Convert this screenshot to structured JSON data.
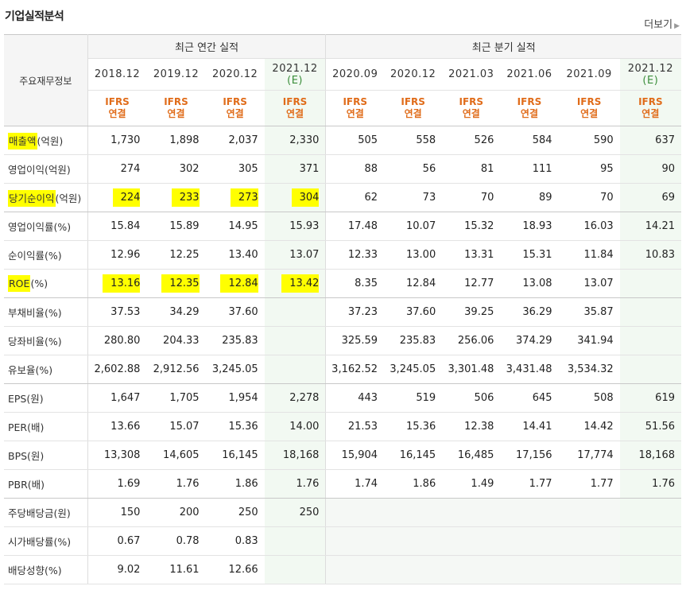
{
  "page_title": "기업실적분석",
  "more_label": "더보기",
  "table": {
    "corner_label": "주요재무정보",
    "group_annual": "최근 연간 실적",
    "group_quarterly": "최근 분기 실적",
    "periods": [
      "2018.12",
      "2019.12",
      "2020.12",
      "2021.12",
      "2020.09",
      "2020.12",
      "2021.03",
      "2021.06",
      "2021.09",
      "2021.12"
    ],
    "estimate_mark": "(E)",
    "ifrs_line1": "IFRS",
    "ifrs_line2": "연결",
    "rows": [
      {
        "label_hl": "매출액",
        "label_rest": "(억원)",
        "values": [
          "1,730",
          "1,898",
          "2,037",
          "2,330",
          "505",
          "558",
          "526",
          "584",
          "590",
          "637"
        ]
      },
      {
        "label": "영업이익(억원)",
        "values": [
          "274",
          "302",
          "305",
          "371",
          "88",
          "56",
          "81",
          "111",
          "95",
          "90"
        ]
      },
      {
        "label_hl": "당기순이익",
        "label_rest": "(억원)",
        "values": [
          "224",
          "233",
          "273",
          "304",
          "62",
          "73",
          "70",
          "89",
          "70",
          "69"
        ]
      },
      {
        "label": "영업이익률(%)",
        "values": [
          "15.84",
          "15.89",
          "14.95",
          "15.93",
          "17.48",
          "10.07",
          "15.32",
          "18.93",
          "16.03",
          "14.21"
        ]
      },
      {
        "label": "순이익률(%)",
        "values": [
          "12.96",
          "12.25",
          "13.40",
          "13.07",
          "12.33",
          "13.00",
          "13.31",
          "15.31",
          "11.84",
          "10.83"
        ]
      },
      {
        "label_hl": "ROE",
        "label_rest": "(%)",
        "values": [
          "13.16",
          "12.35",
          "12.84",
          "13.42",
          "8.35",
          "12.84",
          "12.77",
          "13.08",
          "13.07",
          ""
        ]
      },
      {
        "label": "부채비율(%)",
        "values": [
          "37.53",
          "34.29",
          "37.60",
          "",
          "37.23",
          "37.60",
          "39.25",
          "36.29",
          "35.87",
          ""
        ]
      },
      {
        "label": "당좌비율(%)",
        "values": [
          "280.80",
          "204.33",
          "235.83",
          "",
          "325.59",
          "235.83",
          "256.06",
          "374.29",
          "341.94",
          ""
        ]
      },
      {
        "label": "유보율(%)",
        "values": [
          "2,602.88",
          "2,912.56",
          "3,245.05",
          "",
          "3,162.52",
          "3,245.05",
          "3,301.48",
          "3,431.48",
          "3,534.32",
          ""
        ]
      },
      {
        "label": "EPS(원)",
        "values": [
          "1,647",
          "1,705",
          "1,954",
          "2,278",
          "443",
          "519",
          "506",
          "645",
          "508",
          "619"
        ]
      },
      {
        "label": "PER(배)",
        "values": [
          "13.66",
          "15.07",
          "15.36",
          "14.00",
          "21.53",
          "15.36",
          "12.38",
          "14.41",
          "14.42",
          "51.56"
        ]
      },
      {
        "label": "BPS(원)",
        "values": [
          "13,308",
          "14,605",
          "16,145",
          "18,168",
          "15,904",
          "16,145",
          "16,485",
          "17,156",
          "17,774",
          "18,168"
        ]
      },
      {
        "label": "PBR(배)",
        "values": [
          "1.69",
          "1.76",
          "1.86",
          "1.76",
          "1.74",
          "1.86",
          "1.49",
          "1.77",
          "1.77",
          "1.76"
        ]
      },
      {
        "label": "주당배당금(원)",
        "values": [
          "150",
          "200",
          "250",
          "250",
          "",
          "",
          "",
          "",
          "",
          ""
        ]
      },
      {
        "label": "시가배당률(%)",
        "values": [
          "0.67",
          "0.78",
          "0.83",
          "",
          "",
          "",
          "",
          "",
          "",
          ""
        ]
      },
      {
        "label": "배당성향(%)",
        "values": [
          "9.02",
          "11.61",
          "12.66",
          "",
          "",
          "",
          "",
          "",
          "",
          ""
        ]
      }
    ],
    "highlight_rows": [
      0,
      2,
      5
    ],
    "highlight_value_rows": [
      2,
      5
    ],
    "section_end_rows": [
      2,
      5,
      8,
      12
    ],
    "highlight_color": "#ffff00",
    "ifrs_color": "#e06c1a",
    "estimate_bg": "#f2f9f2"
  }
}
